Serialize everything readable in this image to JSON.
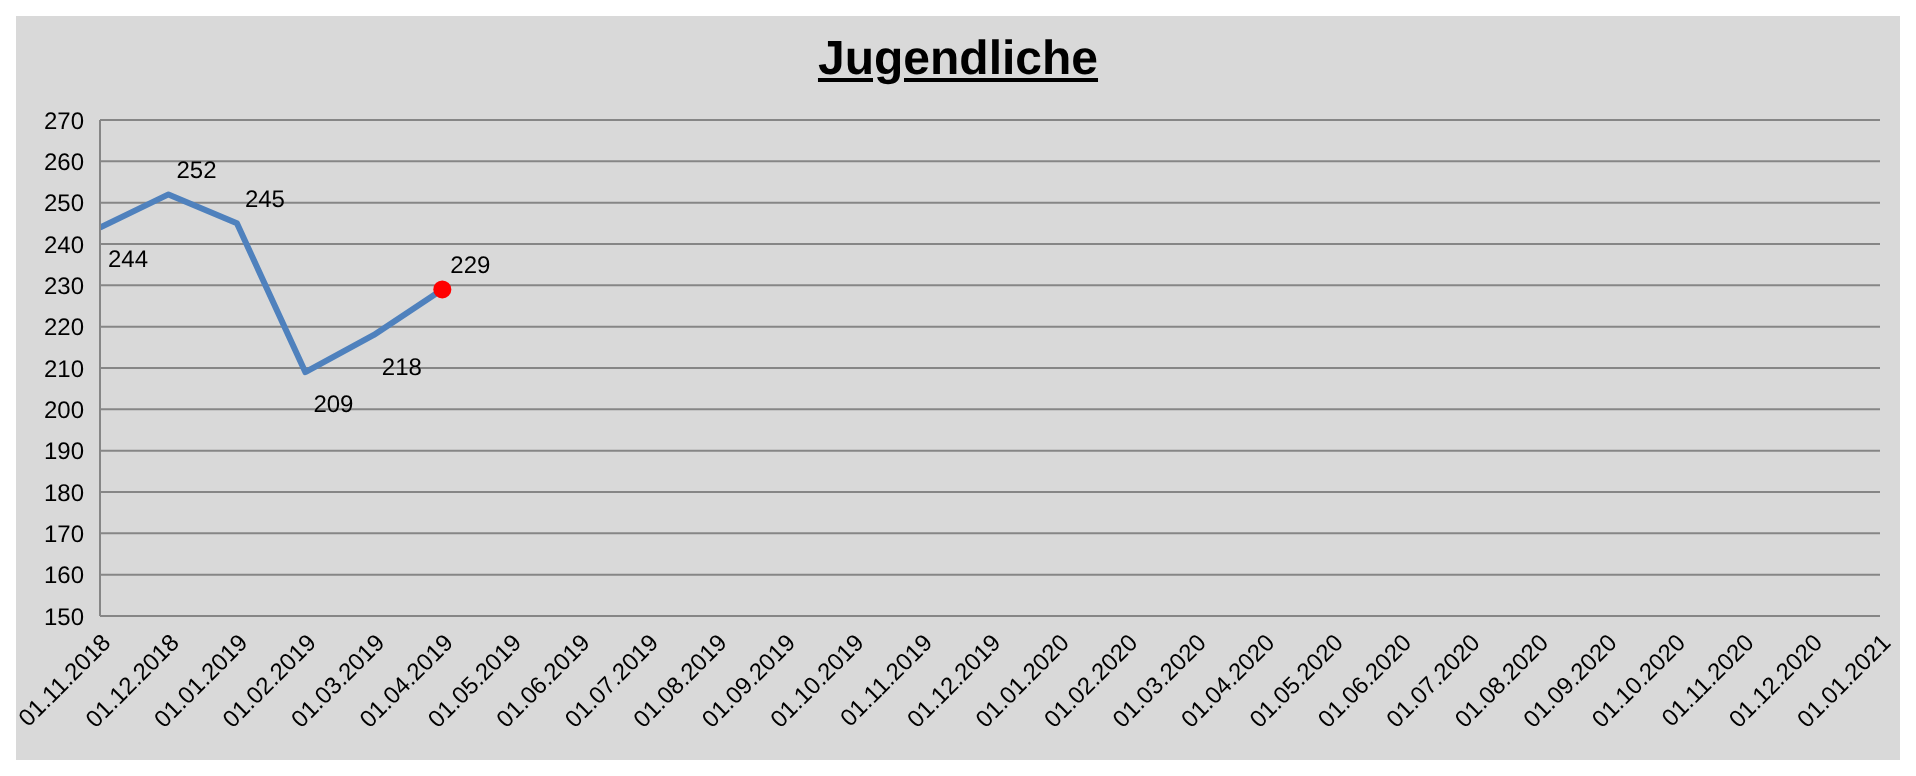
{
  "chart_data": {
    "type": "line",
    "title": "Jugendliche",
    "categories": [
      "01.11.2018",
      "01.12.2018",
      "01.01.2019",
      "01.02.2019",
      "01.03.2019",
      "01.04.2019",
      "01.05.2019",
      "01.06.2019",
      "01.07.2019",
      "01.08.2019",
      "01.09.2019",
      "01.10.2019",
      "01.11.2019",
      "01.12.2019",
      "01.01.2020",
      "01.02.2020",
      "01.03.2020",
      "01.04.2020",
      "01.05.2020",
      "01.06.2020",
      "01.07.2020",
      "01.08.2020",
      "01.09.2020",
      "01.10.2020",
      "01.11.2020",
      "01.12.2020",
      "01.01.2021"
    ],
    "series": [
      {
        "color": "#4f81bd",
        "values": [
          244,
          252,
          245,
          209,
          218,
          229,
          null,
          null,
          null,
          null,
          null,
          null,
          null,
          null,
          null,
          null,
          null,
          null,
          null,
          null,
          null,
          null,
          null,
          null,
          null,
          null,
          null
        ],
        "value_labels": [
          "244",
          "252",
          "245",
          "209",
          "218",
          "229",
          null,
          null,
          null,
          null,
          null,
          null,
          null,
          null,
          null,
          null,
          null,
          null,
          null,
          null,
          null,
          null,
          null,
          null,
          null,
          null,
          null
        ]
      },
      {
        "type": "scatter",
        "marker": "circle",
        "color": "#ff0000",
        "x": [
          "01.04.2019"
        ],
        "values": [
          229
        ]
      }
    ],
    "ylim": [
      150,
      270
    ],
    "yticks": [
      150,
      160,
      170,
      180,
      190,
      200,
      210,
      220,
      230,
      240,
      250,
      260,
      270
    ],
    "grid": "y",
    "legend": false,
    "marker": "none"
  }
}
